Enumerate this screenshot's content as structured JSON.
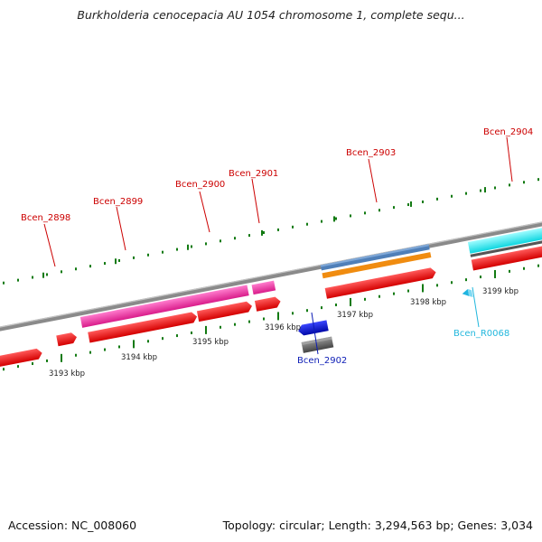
{
  "title": "Burkholderia cenocepacia AU 1054 chromosome 1, complete sequ...",
  "footer": {
    "accession": "Accession: NC_008060",
    "summary": "Topology: circular; Length: 3,294,563 bp; Genes: 3,034"
  },
  "colors": {
    "cds": "#ee1111",
    "cds_label": "#cc0000",
    "pink": "#ee2fa0",
    "blue_gene": "#0a14cc",
    "blue_label": "#0d1db6",
    "cyan": "#10e8ef",
    "cyan_label": "#22b7dd",
    "backbone": "#8a8a8a",
    "tick": "#127a12"
  },
  "kbp_labels": [
    "3193 kbp",
    "3194 kbp",
    "3195 kbp",
    "3196 kbp",
    "3197 kbp",
    "3198 kbp",
    "3199 kbp"
  ],
  "gene_labels": {
    "bcen_2898": "Bcen_2898",
    "bcen_2899": "Bcen_2899",
    "bcen_2900": "Bcen_2900",
    "bcen_2901": "Bcen_2901",
    "bcen_2902": "Bcen_2902",
    "bcen_2903": "Bcen_2903",
    "bcen_2904": "Bcen_2904",
    "bcen_r0068": "Bcen_R0068"
  }
}
